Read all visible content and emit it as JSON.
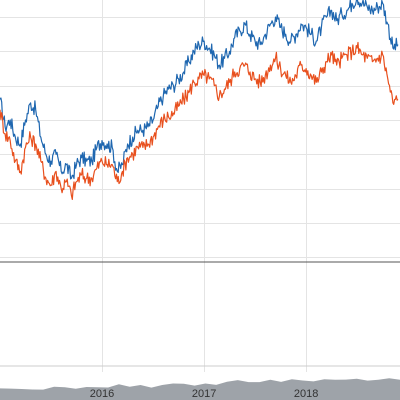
{
  "chart_data": {
    "type": "line",
    "x_tick_labels": [
      "2016",
      "2017",
      "2018"
    ],
    "x_range": [
      2015.0,
      2018.92
    ],
    "y_range": [
      -0.6,
      0.45
    ],
    "y_gridlines": [
      0.4,
      0.3,
      0.2,
      0.1,
      0.0,
      -0.1,
      -0.2,
      -0.3
    ],
    "zero_line": 0.0,
    "grid": true,
    "legend": "none",
    "series": [
      {
        "color": "#1f67b0",
        "x": [
          2015.0,
          2015.05,
          2015.1,
          2015.15,
          2015.2,
          2015.25,
          2015.3,
          2015.35,
          2015.4,
          2015.45,
          2015.5,
          2015.55,
          2015.6,
          2015.65,
          2015.7,
          2015.75,
          2015.8,
          2015.85,
          2015.9,
          2015.95,
          2016.0,
          2016.05,
          2016.1,
          2016.15,
          2016.2,
          2016.25,
          2016.3,
          2016.35,
          2016.4,
          2016.45,
          2016.5,
          2016.55,
          2016.6,
          2016.65,
          2016.7,
          2016.75,
          2016.8,
          2016.85,
          2016.9,
          2016.95,
          2017.0,
          2017.05,
          2017.1,
          2017.15,
          2017.2,
          2017.25,
          2017.3,
          2017.35,
          2017.4,
          2017.45,
          2017.5,
          2017.55,
          2017.6,
          2017.65,
          2017.7,
          2017.75,
          2017.8,
          2017.85,
          2017.9,
          2017.95,
          2018.0,
          2018.05,
          2018.1,
          2018.15,
          2018.2,
          2018.25,
          2018.3,
          2018.35,
          2018.4,
          2018.45,
          2018.5,
          2018.55,
          2018.6,
          2018.65,
          2018.7,
          2018.75,
          2018.8,
          2018.85,
          2018.9
        ],
        "values": [
          0.16,
          0.08,
          0.1,
          0.05,
          0.03,
          0.1,
          0.15,
          0.13,
          0.05,
          0.0,
          -0.02,
          0.0,
          -0.05,
          -0.03,
          -0.07,
          -0.03,
          -0.01,
          -0.02,
          -0.02,
          0.02,
          0.04,
          0.03,
          0.02,
          -0.05,
          -0.03,
          0.03,
          0.05,
          0.07,
          0.07,
          0.08,
          0.1,
          0.14,
          0.17,
          0.19,
          0.2,
          0.22,
          0.24,
          0.27,
          0.3,
          0.32,
          0.33,
          0.31,
          0.29,
          0.26,
          0.28,
          0.3,
          0.34,
          0.36,
          0.38,
          0.35,
          0.33,
          0.32,
          0.35,
          0.38,
          0.4,
          0.37,
          0.35,
          0.33,
          0.35,
          0.38,
          0.37,
          0.35,
          0.33,
          0.37,
          0.4,
          0.42,
          0.39,
          0.41,
          0.42,
          0.44,
          0.46,
          0.44,
          0.43,
          0.42,
          0.43,
          0.44,
          0.38,
          0.31,
          0.32
        ]
      },
      {
        "color": "#e8501e",
        "x": [
          2015.0,
          2015.05,
          2015.1,
          2015.15,
          2015.2,
          2015.25,
          2015.3,
          2015.35,
          2015.4,
          2015.45,
          2015.5,
          2015.55,
          2015.6,
          2015.65,
          2015.7,
          2015.75,
          2015.8,
          2015.85,
          2015.9,
          2015.95,
          2016.0,
          2016.05,
          2016.1,
          2016.15,
          2016.2,
          2016.25,
          2016.3,
          2016.35,
          2016.4,
          2016.45,
          2016.5,
          2016.55,
          2016.6,
          2016.65,
          2016.7,
          2016.75,
          2016.8,
          2016.85,
          2016.9,
          2016.95,
          2017.0,
          2017.05,
          2017.1,
          2017.15,
          2017.2,
          2017.25,
          2017.3,
          2017.35,
          2017.4,
          2017.45,
          2017.5,
          2017.55,
          2017.6,
          2017.65,
          2017.7,
          2017.75,
          2017.8,
          2017.85,
          2017.9,
          2017.95,
          2018.0,
          2018.05,
          2018.1,
          2018.15,
          2018.2,
          2018.25,
          2018.3,
          2018.35,
          2018.4,
          2018.45,
          2018.5,
          2018.55,
          2018.6,
          2018.65,
          2018.7,
          2018.75,
          2018.8,
          2018.85,
          2018.9
        ],
        "values": [
          0.13,
          0.06,
          0.04,
          -0.02,
          -0.05,
          0.02,
          0.05,
          0.03,
          -0.02,
          -0.07,
          -0.09,
          -0.05,
          -0.1,
          -0.08,
          -0.12,
          -0.08,
          -0.06,
          -0.07,
          -0.07,
          -0.04,
          -0.02,
          -0.03,
          -0.03,
          -0.08,
          -0.05,
          -0.01,
          0.0,
          0.02,
          0.02,
          0.03,
          0.05,
          0.08,
          0.1,
          0.11,
          0.12,
          0.14,
          0.16,
          0.18,
          0.21,
          0.22,
          0.23,
          0.22,
          0.2,
          0.17,
          0.19,
          0.21,
          0.24,
          0.25,
          0.26,
          0.24,
          0.22,
          0.21,
          0.23,
          0.26,
          0.28,
          0.25,
          0.23,
          0.21,
          0.23,
          0.26,
          0.25,
          0.23,
          0.21,
          0.24,
          0.27,
          0.29,
          0.26,
          0.28,
          0.29,
          0.3,
          0.31,
          0.29,
          0.28,
          0.27,
          0.28,
          0.29,
          0.22,
          0.15,
          0.16
        ]
      }
    ],
    "volume": {
      "color": "#9ea3a9",
      "values": [
        0.35,
        0.3,
        0.32,
        0.28,
        0.3,
        0.4,
        0.42,
        0.36,
        0.34,
        0.38,
        0.4,
        0.44,
        0.39,
        0.41,
        0.4,
        0.43,
        0.46,
        0.48,
        0.45,
        0.5,
        0.47,
        0.52,
        0.55,
        0.5,
        0.53,
        0.56,
        0.52,
        0.57,
        0.55,
        0.58,
        0.6,
        0.56,
        0.58,
        0.6,
        0.55,
        0.57,
        0.6,
        0.58
      ]
    }
  }
}
